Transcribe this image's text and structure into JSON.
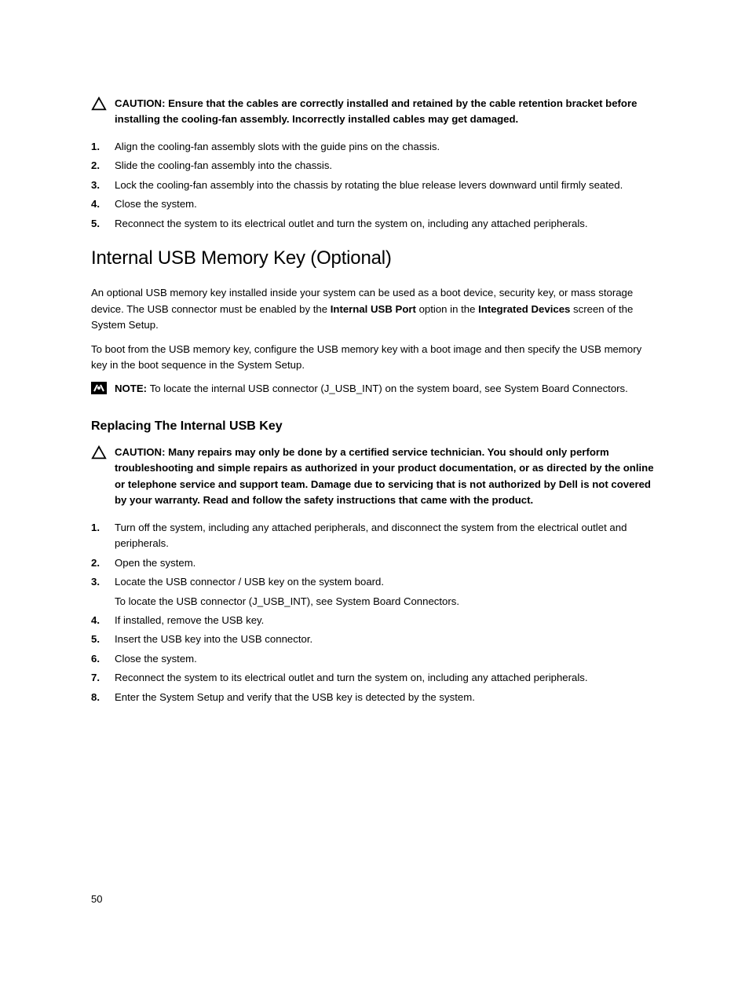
{
  "caution1": {
    "prefix": "CAUTION: ",
    "text": "Ensure that the cables are correctly installed and retained by the cable retention bracket before installing the cooling-fan assembly. Incorrectly installed cables may get damaged."
  },
  "list1": [
    "Align the cooling-fan assembly slots with the guide pins on the chassis.",
    "Slide the cooling-fan assembly into the chassis.",
    "Lock the cooling-fan assembly into the chassis by rotating the blue release levers downward until firmly seated.",
    "Close the system.",
    "Reconnect the system to its electrical outlet and turn the system on, including any attached peripherals."
  ],
  "heading1": "Internal USB Memory Key (Optional)",
  "para1_pre": "An optional USB memory key installed inside your system can be used as a boot device, security key, or mass storage device. The USB connector must be enabled by the ",
  "para1_bold1": "Internal USB Port",
  "para1_mid": " option in the ",
  "para1_bold2": "Integrated Devices",
  "para1_post": " screen of the System Setup.",
  "para2": "To boot from the USB memory key, configure the USB memory key with a boot image and then specify the USB memory key in the boot sequence in the System Setup.",
  "note1": {
    "label": "NOTE: ",
    "text": "To locate the internal USB connector (J_USB_INT) on the system board, see System Board Connectors."
  },
  "heading2": "Replacing The Internal USB Key",
  "caution2": {
    "prefix": "CAUTION: ",
    "text": "Many repairs may only be done by a certified service technician. You should only perform troubleshooting and simple repairs as authorized in your product documentation, or as directed by the online or telephone service and support team. Damage due to servicing that is not authorized by Dell is not covered by your warranty. Read and follow the safety instructions that came with the product."
  },
  "list2": [
    {
      "main": "Turn off the system, including any attached peripherals, and disconnect the system from the electrical outlet and peripherals."
    },
    {
      "main": "Open the system."
    },
    {
      "main": "Locate the USB connector / USB key on the system board.",
      "sub": "To locate the USB connector (J_USB_INT), see System Board Connectors."
    },
    {
      "main": "If installed, remove the USB key."
    },
    {
      "main": "Insert the USB key into the USB connector."
    },
    {
      "main": "Close the system."
    },
    {
      "main": "Reconnect the system to its electrical outlet and turn the system on, including any attached peripherals."
    },
    {
      "main": "Enter the System Setup and verify that the USB key is detected by the system."
    }
  ],
  "page_number": "50"
}
